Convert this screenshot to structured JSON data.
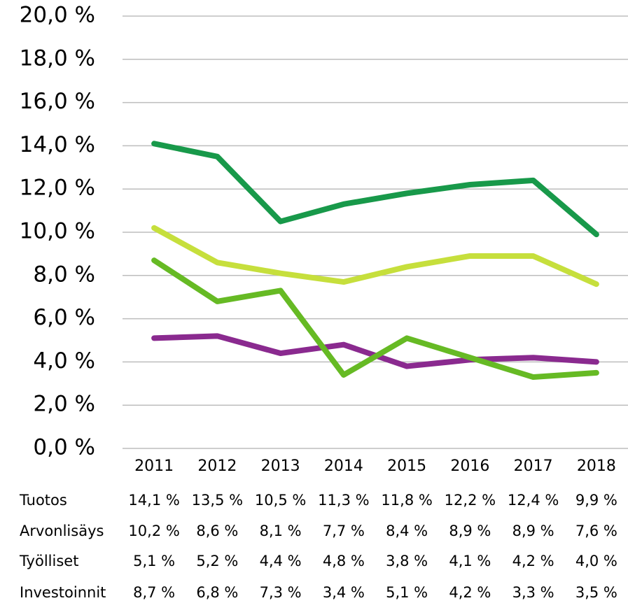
{
  "chart_data": {
    "type": "line",
    "categories": [
      "2011",
      "2012",
      "2013",
      "2014",
      "2015",
      "2016",
      "2017",
      "2018"
    ],
    "series": [
      {
        "name": "Tuotos",
        "color": "#18994a",
        "values": [
          14.1,
          13.5,
          10.5,
          11.3,
          11.8,
          12.2,
          12.4,
          9.9
        ],
        "value_labels": [
          "14,1 %",
          "13,5 %",
          "10,5 %",
          "11,3 %",
          "11,8 %",
          "12,2 %",
          "12,4 %",
          "9,9 %"
        ]
      },
      {
        "name": "Arvonlisäys",
        "color": "#c6df3c",
        "values": [
          10.2,
          8.6,
          8.1,
          7.7,
          8.4,
          8.9,
          8.9,
          7.6
        ],
        "value_labels": [
          "10,2 %",
          "8,6 %",
          "8,1 %",
          "7,7 %",
          "8,4 %",
          "8,9 %",
          "8,9 %",
          "7,6 %"
        ]
      },
      {
        "name": "Työlliset",
        "color": "#8a2a8f",
        "values": [
          5.1,
          5.2,
          4.4,
          4.8,
          3.8,
          4.1,
          4.2,
          4.0
        ],
        "value_labels": [
          "5,1 %",
          "5,2 %",
          "4,4 %",
          "4,8 %",
          "3,8 %",
          "4,1 %",
          "4,2 %",
          "4,0 %"
        ]
      },
      {
        "name": "Investoinnit",
        "color": "#66ba24",
        "values": [
          8.7,
          6.8,
          7.3,
          3.4,
          5.1,
          4.2,
          3.3,
          3.5
        ],
        "value_labels": [
          "8,7 %",
          "6,8 %",
          "7,3 %",
          "3,4 %",
          "5,1 %",
          "4,2 %",
          "3,3 %",
          "3,5 %"
        ]
      }
    ],
    "ylim": [
      0,
      20
    ],
    "yticks": [
      {
        "value": 0,
        "label": "0,0 %"
      },
      {
        "value": 2,
        "label": "2,0 %"
      },
      {
        "value": 4,
        "label": "4,0 %"
      },
      {
        "value": 6,
        "label": "6,0 %"
      },
      {
        "value": 8,
        "label": "8,0 %"
      },
      {
        "value": 10,
        "label": "10,0 %"
      },
      {
        "value": 12,
        "label": "12,0 %"
      },
      {
        "value": 14,
        "label": "14,0 %"
      },
      {
        "value": 16,
        "label": "16,0 %"
      },
      {
        "value": 18,
        "label": "18,0 %"
      },
      {
        "value": 20,
        "label": "20,0 %"
      }
    ],
    "grid": true
  }
}
